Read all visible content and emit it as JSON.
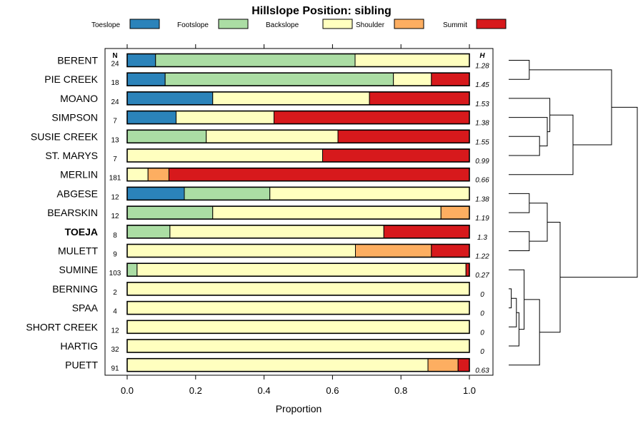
{
  "chart_data": {
    "type": "bar",
    "orientation": "horizontal",
    "stacked": true,
    "title": "Hillslope Position: sibling",
    "xlabel": "Proportion",
    "ylabel": "",
    "xlim": [
      0,
      1
    ],
    "x_ticks": [
      "0.0",
      "0.2",
      "0.4",
      "0.6",
      "0.8",
      "1.0"
    ],
    "n_header": "N",
    "h_header": "H",
    "highlight": "TOEJA",
    "categories": [
      "BERENT",
      "PIE CREEK",
      "MOANO",
      "SIMPSON",
      "SUSIE CREEK",
      "ST. MARYS",
      "MERLIN",
      "ABGESE",
      "BEARSKIN",
      "TOEJA",
      "MULETT",
      "SUMINE",
      "BERNING",
      "SPAA",
      "SHORT CREEK",
      "HARTIG",
      "PUETT"
    ],
    "n_values": [
      "24",
      "18",
      "24",
      "7",
      "13",
      "7",
      "181",
      "12",
      "12",
      "8",
      "9",
      "103",
      "2",
      "4",
      "12",
      "32",
      "91"
    ],
    "h_values": [
      "1.28",
      "1.45",
      "1.53",
      "1.38",
      "1.55",
      "0.99",
      "0.66",
      "1.38",
      "1.19",
      "1.3",
      "1.22",
      "0.27",
      "0",
      "0",
      "0",
      "0",
      "0.63"
    ],
    "series": [
      {
        "name": "Toeslope",
        "color": "#2b83ba",
        "values": [
          0.083,
          0.111,
          0.25,
          0.143,
          0,
          0,
          0,
          0.167,
          0,
          0,
          0,
          0,
          0,
          0,
          0,
          0,
          0
        ]
      },
      {
        "name": "Footslope",
        "color": "#abdda4",
        "values": [
          0.583,
          0.667,
          0,
          0,
          0.231,
          0,
          0,
          0.25,
          0.25,
          0.125,
          0,
          0.029,
          0,
          0,
          0,
          0,
          0
        ]
      },
      {
        "name": "Backslope",
        "color": "#ffffbf",
        "values": [
          0.334,
          0.111,
          0.458,
          0.286,
          0.385,
          0.571,
          0.061,
          0.583,
          0.667,
          0.625,
          0.667,
          0.961,
          1,
          1,
          1,
          1,
          0.879
        ]
      },
      {
        "name": "Shoulder",
        "color": "#fdae61",
        "values": [
          0,
          0,
          0,
          0,
          0,
          0,
          0.061,
          0,
          0.083,
          0,
          0.222,
          0,
          0,
          0,
          0,
          0,
          0.088
        ]
      },
      {
        "name": "Summit",
        "color": "#d7191c",
        "values": [
          0,
          0.111,
          0.292,
          0.571,
          0.384,
          0.429,
          0.878,
          0,
          0,
          0.25,
          0.111,
          0.01,
          0,
          0,
          0,
          0,
          0.033
        ]
      }
    ],
    "dendrogram": {
      "merges": [
        [
          "BERENT",
          "PIE CREEK",
          0.16
        ],
        [
          "SUSIE CREEK",
          "ST. MARYS",
          0.24
        ],
        [
          "SIMPSON",
          "c2",
          0.3
        ],
        [
          "MOANO",
          "c3",
          0.32
        ],
        [
          "c4",
          "MERLIN",
          0.5
        ],
        [
          "c1",
          "c5",
          0.8
        ],
        [
          "ABGESE",
          "BEARSKIN",
          0.16
        ],
        [
          "TOEJA",
          "MULETT",
          0.16
        ],
        [
          "c7",
          "c8",
          0.3
        ],
        [
          "BERNING",
          "SPAA",
          0.02
        ],
        [
          "c10",
          "SHORT CREEK",
          0.06
        ],
        [
          "c11",
          "HARTIG",
          0.08
        ],
        [
          "SUMINE",
          "c12",
          0.12
        ],
        [
          "c13",
          "PUETT",
          0.24
        ],
        [
          "c9",
          "c14",
          0.4
        ],
        [
          "c6",
          "c15",
          1.0
        ]
      ]
    }
  }
}
